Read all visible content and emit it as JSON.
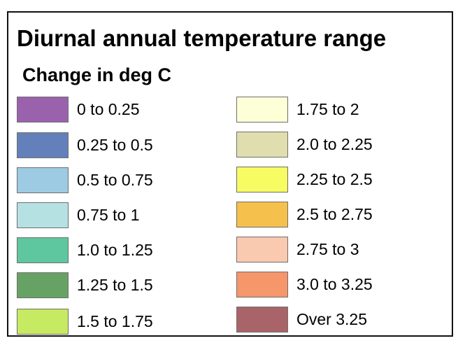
{
  "legend": {
    "title": "Diurnal annual temperature range",
    "subtitle": "Change in deg C",
    "left_items": [
      {
        "label": "0 to 0.25",
        "color": "#9a62ad"
      },
      {
        "label": "0.25 to 0.5",
        "color": "#6380bb"
      },
      {
        "label": "0.5 to 0.75",
        "color": "#9dcbe3"
      },
      {
        "label": "0.75 to 1",
        "color": "#b6e1e2"
      },
      {
        "label": "1.0 to 1.25",
        "color": "#5ec79f"
      },
      {
        "label": "1.25 to 1.5",
        "color": "#67a265"
      },
      {
        "label": "1.5 to 1.75",
        "color": "#c6ea62"
      }
    ],
    "right_items": [
      {
        "label": "1.75 to 2",
        "color": "#fdffd7"
      },
      {
        "label": "2.0 to 2.25",
        "color": "#e0deaf"
      },
      {
        "label": "2.25 to 2.5",
        "color": "#f6fc62"
      },
      {
        "label": "2.5 to 2.75",
        "color": "#f5c04b"
      },
      {
        "label": "2.75 to 3",
        "color": "#f9c9b0"
      },
      {
        "label": "3.0 to 3.25",
        "color": "#f5966b"
      },
      {
        "label": "Over 3.25",
        "color": "#a86468"
      }
    ]
  }
}
